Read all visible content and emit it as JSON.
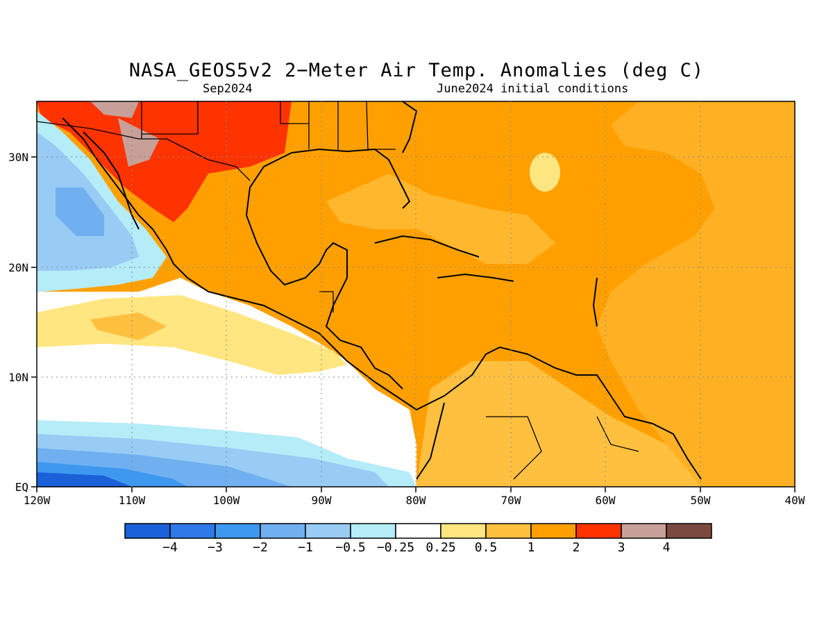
{
  "title": "NASA_GEOS5v2 2−Meter Air Temp. Anomalies (deg C)",
  "subtitle_left": "Sep2024",
  "subtitle_right": "June2024 initial conditions",
  "map": {
    "lon_labels": [
      "120W",
      "110W",
      "100W",
      "90W",
      "80W",
      "70W",
      "60W",
      "50W",
      "40W"
    ],
    "lat_labels": [
      "EQ",
      "10N",
      "20N",
      "30N"
    ]
  },
  "colorbar": {
    "colors": [
      "#1a60d8",
      "#2f78e8",
      "#3f98f0",
      "#70b0f0",
      "#98ccf5",
      "#b4ecf8",
      "#ffffff",
      "#ffe680",
      "#ffc040",
      "#ffa000",
      "#ff3300",
      "#c8a098",
      "#7a4a40"
    ],
    "labels": [
      "−4",
      "−3",
      "−2",
      "−1",
      "−0.5",
      "−0.25",
      "0.25",
      "0.5",
      "1",
      "2",
      "3",
      "4"
    ]
  }
}
